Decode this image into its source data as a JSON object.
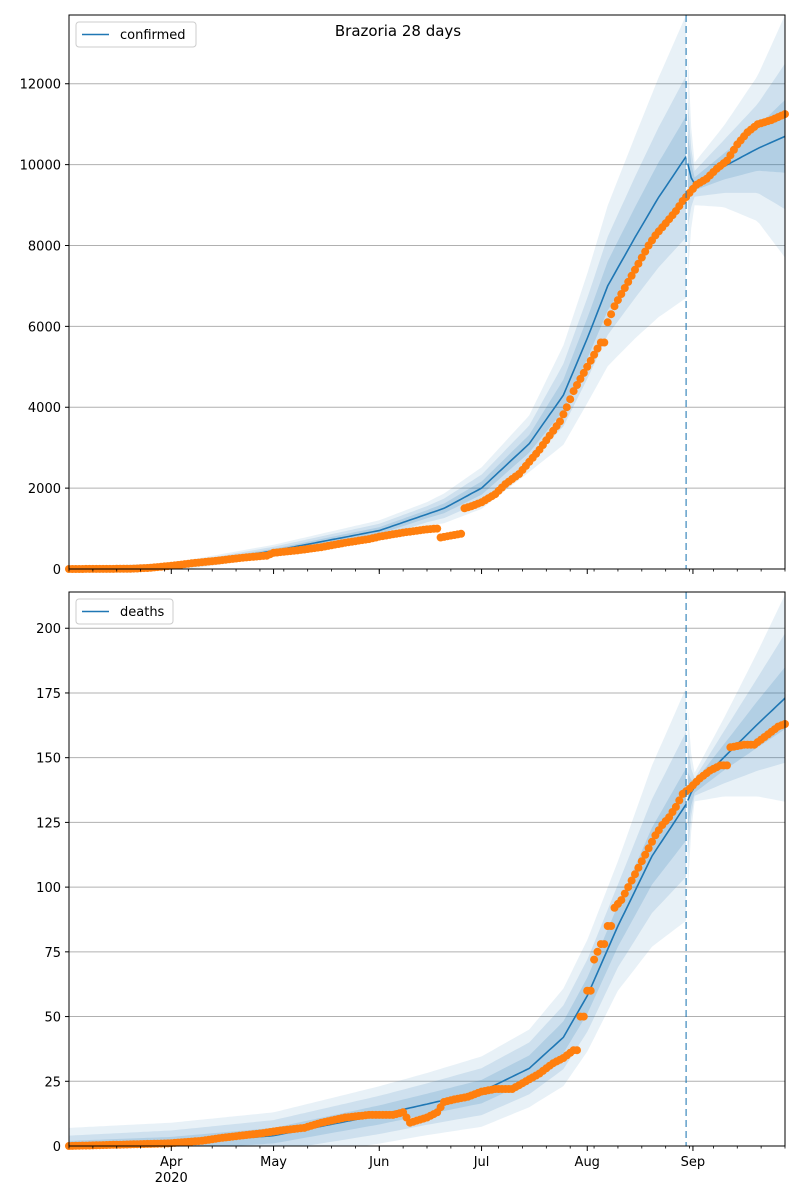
{
  "chart_data": [
    {
      "type": "line",
      "title": "Brazoria 28 days",
      "legend": {
        "label": "confirmed",
        "placement": "top-left"
      },
      "ylim": [
        0,
        13700
      ],
      "yticks": [
        0,
        2000,
        4000,
        6000,
        8000,
        10000,
        12000
      ],
      "xlim": [
        "2020-03-02",
        "2020-09-28"
      ],
      "forecast_start": "2020-08-30",
      "grid": "horizontal",
      "colors": {
        "line": "#1f77b4",
        "band": "#1f77b4",
        "points": "#ff7f0e",
        "vline": "#1f77b4"
      },
      "model_median": [
        [
          "2020-03-02",
          0
        ],
        [
          "2020-04-01",
          40
        ],
        [
          "2020-05-01",
          450
        ],
        [
          "2020-06-01",
          950
        ],
        [
          "2020-06-20",
          1500
        ],
        [
          "2020-07-01",
          2000
        ],
        [
          "2020-07-15",
          3100
        ],
        [
          "2020-07-25",
          4300
        ],
        [
          "2020-08-01",
          5700
        ],
        [
          "2020-08-07",
          7000
        ],
        [
          "2020-08-15",
          8200
        ],
        [
          "2020-08-22",
          9200
        ],
        [
          "2020-08-30",
          10200
        ],
        [
          "2020-09-01",
          9500
        ],
        [
          "2020-09-10",
          9950
        ],
        [
          "2020-09-20",
          10400
        ],
        [
          "2020-09-28",
          10700
        ]
      ],
      "bands_halfwidth": [
        [
          "2020-03-02",
          60,
          40,
          20
        ],
        [
          "2020-05-01",
          150,
          100,
          50
        ],
        [
          "2020-06-15",
          300,
          200,
          100
        ],
        [
          "2020-07-15",
          700,
          450,
          220
        ],
        [
          "2020-08-01",
          1600,
          1000,
          500
        ],
        [
          "2020-08-15",
          2500,
          1500,
          750
        ],
        [
          "2020-08-30",
          3500,
          2000,
          1000
        ],
        [
          "2020-09-01",
          500,
          300,
          150
        ],
        [
          "2020-09-10",
          1000,
          650,
          320
        ],
        [
          "2020-09-20",
          1800,
          1100,
          550
        ],
        [
          "2020-09-28",
          3000,
          1800,
          900
        ]
      ],
      "observed": [
        [
          "2020-03-02",
          0
        ],
        [
          "2020-03-20",
          5
        ],
        [
          "2020-03-26",
          30
        ],
        [
          "2020-04-01",
          80
        ],
        [
          "2020-04-08",
          150
        ],
        [
          "2020-04-15",
          210
        ],
        [
          "2020-04-22",
          280
        ],
        [
          "2020-04-29",
          330
        ],
        [
          "2020-05-01",
          400
        ],
        [
          "2020-05-08",
          460
        ],
        [
          "2020-05-15",
          540
        ],
        [
          "2020-05-22",
          650
        ],
        [
          "2020-05-29",
          740
        ],
        [
          "2020-06-01",
          800
        ],
        [
          "2020-06-08",
          900
        ],
        [
          "2020-06-15",
          980
        ],
        [
          "2020-06-18",
          1000
        ],
        [
          "2020-06-19",
          780
        ],
        [
          "2020-06-25",
          870
        ],
        [
          "2020-06-26",
          1500
        ],
        [
          "2020-06-28",
          1550
        ],
        [
          "2020-07-01",
          1650
        ],
        [
          "2020-07-05",
          1850
        ],
        [
          "2020-07-08",
          2100
        ],
        [
          "2020-07-12",
          2350
        ],
        [
          "2020-07-15",
          2650
        ],
        [
          "2020-07-18",
          2950
        ],
        [
          "2020-07-21",
          3300
        ],
        [
          "2020-07-24",
          3650
        ],
        [
          "2020-07-26",
          4000
        ],
        [
          "2020-07-28",
          4400
        ],
        [
          "2020-07-30",
          4700
        ],
        [
          "2020-08-01",
          5000
        ],
        [
          "2020-08-03",
          5300
        ],
        [
          "2020-08-05",
          5600
        ],
        [
          "2020-08-07",
          6100
        ],
        [
          "2020-08-09",
          6500
        ],
        [
          "2020-08-11",
          6800
        ],
        [
          "2020-08-13",
          7100
        ],
        [
          "2020-08-15",
          7400
        ],
        [
          "2020-08-17",
          7700
        ],
        [
          "2020-08-19",
          8000
        ],
        [
          "2020-08-21",
          8250
        ],
        [
          "2020-08-23",
          8450
        ],
        [
          "2020-08-25",
          8650
        ],
        [
          "2020-08-27",
          8850
        ],
        [
          "2020-08-29",
          9100
        ],
        [
          "2020-08-31",
          9300
        ],
        [
          "2020-09-02",
          9500
        ],
        [
          "2020-09-05",
          9650
        ],
        [
          "2020-09-08",
          9900
        ],
        [
          "2020-09-11",
          10100
        ],
        [
          "2020-09-14",
          10500
        ],
        [
          "2020-09-17",
          10800
        ],
        [
          "2020-09-20",
          11000
        ],
        [
          "2020-09-24",
          11100
        ],
        [
          "2020-09-28",
          11250
        ]
      ]
    },
    {
      "type": "line",
      "title": "",
      "legend": {
        "label": "deaths",
        "placement": "top-left"
      },
      "ylim": [
        0,
        214
      ],
      "yticks": [
        0,
        25,
        50,
        75,
        100,
        125,
        150,
        175,
        200
      ],
      "xlim": [
        "2020-03-02",
        "2020-09-28"
      ],
      "forecast_start": "2020-08-30",
      "grid": "horizontal",
      "colors": {
        "line": "#1f77b4",
        "band": "#1f77b4",
        "points": "#ff7f0e",
        "vline": "#1f77b4"
      },
      "model_median": [
        [
          "2020-03-02",
          0
        ],
        [
          "2020-04-01",
          1
        ],
        [
          "2020-05-01",
          4
        ],
        [
          "2020-06-01",
          12
        ],
        [
          "2020-07-01",
          21
        ],
        [
          "2020-07-15",
          30
        ],
        [
          "2020-07-25",
          42
        ],
        [
          "2020-08-01",
          58
        ],
        [
          "2020-08-10",
          85
        ],
        [
          "2020-08-20",
          112
        ],
        [
          "2020-08-30",
          132
        ],
        [
          "2020-09-01",
          138
        ],
        [
          "2020-09-10",
          150
        ],
        [
          "2020-09-20",
          163
        ],
        [
          "2020-09-28",
          173
        ]
      ],
      "bands_halfwidth": [
        [
          "2020-03-02",
          7,
          4,
          2
        ],
        [
          "2020-05-01",
          9,
          6,
          3
        ],
        [
          "2020-06-15",
          12,
          8,
          4
        ],
        [
          "2020-07-15",
          15,
          10,
          5
        ],
        [
          "2020-08-10",
          25,
          16,
          8
        ],
        [
          "2020-08-30",
          45,
          28,
          14
        ],
        [
          "2020-09-01",
          5,
          3,
          2
        ],
        [
          "2020-09-10",
          15,
          10,
          5
        ],
        [
          "2020-09-20",
          28,
          18,
          9
        ],
        [
          "2020-09-28",
          40,
          25,
          12
        ]
      ],
      "observed": [
        [
          "2020-03-02",
          0
        ],
        [
          "2020-03-31",
          1
        ],
        [
          "2020-04-10",
          2
        ],
        [
          "2020-04-15",
          3
        ],
        [
          "2020-04-28",
          5
        ],
        [
          "2020-05-03",
          6
        ],
        [
          "2020-05-10",
          7
        ],
        [
          "2020-05-15",
          9
        ],
        [
          "2020-05-22",
          11
        ],
        [
          "2020-05-29",
          12
        ],
        [
          "2020-06-05",
          12
        ],
        [
          "2020-06-08",
          13
        ],
        [
          "2020-06-10",
          9
        ],
        [
          "2020-06-15",
          11
        ],
        [
          "2020-06-18",
          13
        ],
        [
          "2020-06-20",
          17
        ],
        [
          "2020-06-23",
          18
        ],
        [
          "2020-06-27",
          19
        ],
        [
          "2020-07-01",
          21
        ],
        [
          "2020-07-05",
          22
        ],
        [
          "2020-07-10",
          22
        ],
        [
          "2020-07-14",
          25
        ],
        [
          "2020-07-18",
          28
        ],
        [
          "2020-07-22",
          32
        ],
        [
          "2020-07-25",
          34
        ],
        [
          "2020-07-28",
          37
        ],
        [
          "2020-07-30",
          50
        ],
        [
          "2020-08-01",
          60
        ],
        [
          "2020-08-03",
          72
        ],
        [
          "2020-08-05",
          78
        ],
        [
          "2020-08-07",
          85
        ],
        [
          "2020-08-09",
          92
        ],
        [
          "2020-08-11",
          95
        ],
        [
          "2020-08-13",
          100
        ],
        [
          "2020-08-15",
          105
        ],
        [
          "2020-08-17",
          110
        ],
        [
          "2020-08-19",
          115
        ],
        [
          "2020-08-21",
          120
        ],
        [
          "2020-08-23",
          124
        ],
        [
          "2020-08-25",
          127
        ],
        [
          "2020-08-27",
          131
        ],
        [
          "2020-08-29",
          136
        ],
        [
          "2020-08-31",
          138
        ],
        [
          "2020-09-03",
          142
        ],
        [
          "2020-09-06",
          145
        ],
        [
          "2020-09-09",
          147
        ],
        [
          "2020-09-12",
          154
        ],
        [
          "2020-09-16",
          155
        ],
        [
          "2020-09-19",
          155
        ],
        [
          "2020-09-22",
          158
        ],
        [
          "2020-09-26",
          162
        ],
        [
          "2020-09-28",
          163
        ]
      ]
    }
  ],
  "x_axis": {
    "tick_labels": [
      {
        "date": "2020-04-01",
        "label": "Apr",
        "year": "2020"
      },
      {
        "date": "2020-05-01",
        "label": "May"
      },
      {
        "date": "2020-06-01",
        "label": "Jun"
      },
      {
        "date": "2020-07-01",
        "label": "Jul"
      },
      {
        "date": "2020-08-01",
        "label": "Aug"
      },
      {
        "date": "2020-09-01",
        "label": "Sep"
      }
    ]
  }
}
